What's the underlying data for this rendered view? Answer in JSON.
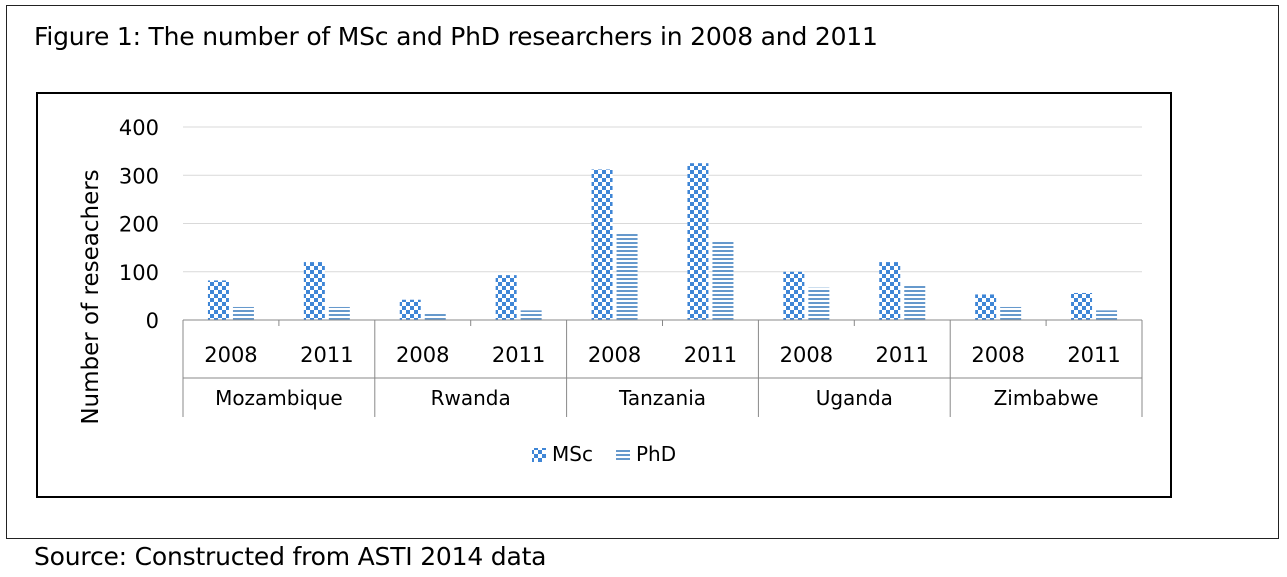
{
  "figure_title": "Figure 1: The number of MSc and PhD researchers in 2008 and 2011",
  "source_note": "Source: Constructed from ASTI 2014 data",
  "colors": {
    "msc": "#4a90d9",
    "phd": "#6aa0d6",
    "grid": "#d9d9d9",
    "axis": "#888888"
  },
  "chart_data": {
    "type": "bar",
    "ylabel": "Number of reseachers",
    "ylim": [
      0,
      400
    ],
    "yticks": [
      0,
      100,
      200,
      300,
      400
    ],
    "grid": true,
    "legend_position": "bottom",
    "groups": [
      "Mozambique",
      "Rwanda",
      "Tanzania",
      "Uganda",
      "Zimbabwe"
    ],
    "years": [
      "2008",
      "2011"
    ],
    "categories": [
      "Mozambique 2008",
      "Mozambique 2011",
      "Rwanda 2008",
      "Rwanda 2011",
      "Tanzania 2008",
      "Tanzania 2011",
      "Uganda 2008",
      "Uganda 2011",
      "Zimbabwe 2008",
      "Zimbabwe 2011"
    ],
    "series": [
      {
        "name": "MSc",
        "pattern": "checker",
        "values": [
          82,
          120,
          42,
          93,
          312,
          325,
          100,
          120,
          53,
          56
        ]
      },
      {
        "name": "PhD",
        "pattern": "stripes",
        "values": [
          27,
          27,
          14,
          20,
          180,
          165,
          67,
          72,
          27,
          20
        ]
      }
    ]
  }
}
